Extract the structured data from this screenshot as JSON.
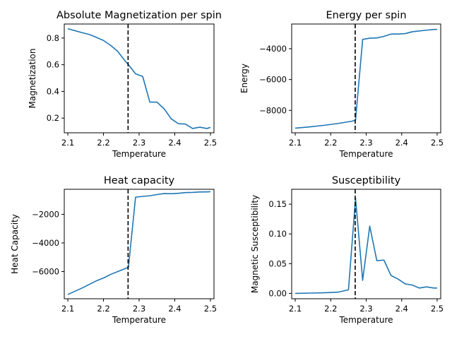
{
  "figure": {
    "line_color": "#1f77b4",
    "vline_color": "#000000"
  },
  "chart_data": [
    {
      "type": "line",
      "title": "Absolute Magnetization per spin",
      "xlabel": "Temperature",
      "ylabel": "Magnetization",
      "xlim": [
        2.09,
        2.51
      ],
      "ylim": [
        0.09,
        0.905
      ],
      "xticks": [
        2.1,
        2.2,
        2.3,
        2.4,
        2.5
      ],
      "yticks": [
        0.2,
        0.4,
        0.6,
        0.8
      ],
      "critical_temperature": 2.269,
      "x": [
        2.1,
        2.12,
        2.14,
        2.16,
        2.18,
        2.2,
        2.22,
        2.24,
        2.26,
        2.27,
        2.29,
        2.31,
        2.33,
        2.35,
        2.37,
        2.39,
        2.41,
        2.43,
        2.45,
        2.47,
        2.49,
        2.5
      ],
      "y": [
        0.87,
        0.855,
        0.84,
        0.827,
        0.805,
        0.782,
        0.745,
        0.7,
        0.63,
        0.6,
        0.532,
        0.512,
        0.32,
        0.32,
        0.27,
        0.195,
        0.158,
        0.155,
        0.122,
        0.132,
        0.122,
        0.13
      ]
    },
    {
      "type": "line",
      "title": "Energy per spin",
      "xlabel": "Temperature",
      "ylabel": "Energy",
      "xlim": [
        2.09,
        2.51
      ],
      "ylim": [
        -9450,
        -2400
      ],
      "xticks": [
        2.1,
        2.2,
        2.3,
        2.4,
        2.5
      ],
      "yticks": [
        -8000,
        -6000,
        -4000
      ],
      "critical_temperature": 2.269,
      "x": [
        2.1,
        2.14,
        2.18,
        2.22,
        2.26,
        2.27,
        2.29,
        2.31,
        2.33,
        2.35,
        2.37,
        2.39,
        2.41,
        2.43,
        2.45,
        2.47,
        2.49,
        2.5
      ],
      "y": [
        -9150,
        -9070,
        -8970,
        -8850,
        -8700,
        -8620,
        -3400,
        -3320,
        -3300,
        -3200,
        -3050,
        -3050,
        -3020,
        -2900,
        -2850,
        -2800,
        -2750,
        -2750
      ]
    },
    {
      "type": "line",
      "title": "Heat capacity",
      "xlabel": "Temperature",
      "ylabel": "Heat Capacity",
      "xlim": [
        2.09,
        2.51
      ],
      "ylim": [
        -7900,
        -250
      ],
      "xticks": [
        2.1,
        2.2,
        2.3,
        2.4,
        2.5
      ],
      "yticks": [
        -6000,
        -4000,
        -2000
      ],
      "critical_temperature": 2.269,
      "x": [
        2.1,
        2.14,
        2.18,
        2.2,
        2.22,
        2.24,
        2.26,
        2.27,
        2.29,
        2.31,
        2.33,
        2.35,
        2.37,
        2.39,
        2.41,
        2.43,
        2.45,
        2.47,
        2.49,
        2.5
      ],
      "y": [
        -7600,
        -7150,
        -6650,
        -6450,
        -6200,
        -6000,
        -5800,
        -5700,
        -800,
        -750,
        -700,
        -620,
        -550,
        -560,
        -530,
        -480,
        -470,
        -440,
        -430,
        -420
      ]
    },
    {
      "type": "line",
      "title": "Susceptibility",
      "xlabel": "Temperature",
      "ylabel": "Magnetic Susceptibility",
      "xlim": [
        2.09,
        2.51
      ],
      "ylim": [
        -0.009,
        0.175
      ],
      "xticks": [
        2.1,
        2.2,
        2.3,
        2.4,
        2.5
      ],
      "yticks": [
        0.0,
        0.05,
        0.1,
        0.15
      ],
      "ytick_labels": [
        "0.00",
        "0.05",
        "0.10",
        "0.15"
      ],
      "critical_temperature": 2.269,
      "x": [
        2.1,
        2.14,
        2.18,
        2.22,
        2.25,
        2.27,
        2.29,
        2.31,
        2.33,
        2.35,
        2.37,
        2.39,
        2.41,
        2.43,
        2.45,
        2.47,
        2.49,
        2.5
      ],
      "y": [
        0.0,
        0.0005,
        0.001,
        0.002,
        0.006,
        0.16,
        0.022,
        0.113,
        0.055,
        0.056,
        0.03,
        0.024,
        0.016,
        0.014,
        0.009,
        0.011,
        0.009,
        0.009
      ]
    }
  ]
}
